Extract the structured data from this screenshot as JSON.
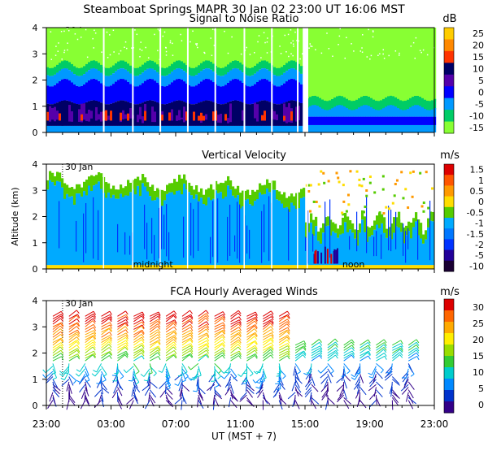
{
  "header": {
    "title": "Steamboat Springs  MAPR 30 Jan 02  23:00 UT  16:06  MST"
  },
  "chart_data": [
    {
      "type": "heatmap",
      "title": "Signal to Noise Ratio",
      "unit": "dB",
      "ylabel": "",
      "ylim": [
        0,
        4
      ],
      "yticks": [
        "0",
        "1",
        "2",
        "3",
        "4"
      ],
      "date_marker": "30 Jan",
      "colorbar": {
        "labels": [
          "25",
          "20",
          "15",
          "10",
          "5",
          "0",
          "-5",
          "-10",
          "-15"
        ],
        "colors": [
          "#ffcc00",
          "#ff8800",
          "#ff3300",
          "#000066",
          "#5500aa",
          "#0000ff",
          "#0099ff",
          "#00cc66",
          "#88ff33"
        ]
      },
      "profile_by_km": {
        "night_period": {
          "0.0-0.3": "-5",
          "0.3-1.2": "5 to 15",
          "1.2-2.0": "0 to 5",
          "2.0-2.6": "-5",
          "2.6-4.0": "-10 to -15"
        },
        "afternoon_period": {
          "0.0-0.3": "-5",
          "0.3-0.7": "0",
          "0.7-1.3": "-5",
          "1.3-4.0": "-15"
        }
      }
    },
    {
      "type": "heatmap",
      "title": "Vertical Velocity",
      "unit": "m/s",
      "ylabel": "Altitude (km)",
      "ylim": [
        0,
        4
      ],
      "yticks": [
        "0",
        "1",
        "2",
        "3",
        "4"
      ],
      "date_marker": "30 Jan",
      "time_annotations": [
        "midnight",
        "noon"
      ],
      "colorbar": {
        "labels": [
          "1.5",
          "1",
          "0.5",
          "0",
          "-0.5",
          "-1",
          "-1.5",
          "-2",
          "-5",
          "-10"
        ],
        "colors": [
          "#dd0000",
          "#ff5500",
          "#ff9900",
          "#ffdd00",
          "#55cc00",
          "#00aaff",
          "#0077ff",
          "#0033ff",
          "#220099",
          "#1a0033"
        ]
      },
      "dominant_value": "-1"
    },
    {
      "type": "scatter",
      "title": "FCA Hourly Averaged Winds",
      "unit": "m/s",
      "ylabel": "",
      "ylim": [
        0,
        4
      ],
      "yticks": [
        "0",
        "1",
        "2",
        "3",
        "4"
      ],
      "date_marker": "30 Jan",
      "xlabel": "UT  (MST + 7)",
      "xticks": [
        "23:00",
        "03:00",
        "07:00",
        "11:00",
        "15:00",
        "19:00",
        "23:00"
      ],
      "xlim_hours": [
        0,
        24
      ],
      "colorbar": {
        "labels": [
          "30",
          "25",
          "20",
          "15",
          "10",
          "5",
          "0"
        ],
        "colors": [
          "#dd0000",
          "#ff6600",
          "#ffaa00",
          "#ffee00",
          "#99dd00",
          "#33cc33",
          "#00cccc",
          "#0088ff",
          "#0033cc",
          "#330088"
        ]
      },
      "wind_speed_profile_ms": {
        "altitudes_km": [
          0.2,
          1.0,
          1.5,
          2.0,
          2.5,
          3.0,
          3.5
        ],
        "night": [
          2,
          4,
          8,
          15,
          22,
          27,
          29
        ],
        "afternoon": [
          2,
          3,
          5,
          10,
          12,
          null,
          null
        ]
      }
    }
  ]
}
